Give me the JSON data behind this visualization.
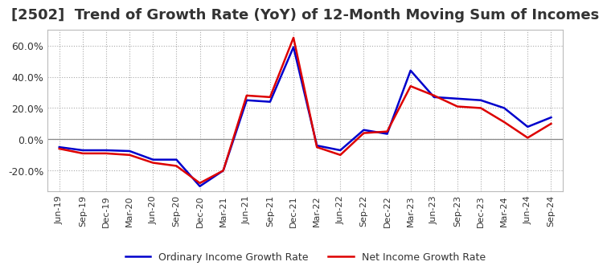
{
  "title": "[2502]  Trend of Growth Rate (YoY) of 12-Month Moving Sum of Incomes",
  "title_fontsize": 13,
  "background_color": "#ffffff",
  "plot_background_color": "#ffffff",
  "grid_color": "#aaaaaa",
  "ordinary_color": "#0000cc",
  "net_color": "#dd0000",
  "legend_labels": [
    "Ordinary Income Growth Rate",
    "Net Income Growth Rate"
  ],
  "dates": [
    "Jun-19",
    "Sep-19",
    "Dec-19",
    "Mar-20",
    "Jun-20",
    "Sep-20",
    "Dec-20",
    "Mar-21",
    "Jun-21",
    "Sep-21",
    "Dec-21",
    "Mar-22",
    "Jun-22",
    "Sep-22",
    "Dec-22",
    "Mar-23",
    "Jun-23",
    "Sep-23",
    "Dec-23",
    "Mar-24",
    "Jun-24",
    "Sep-24"
  ],
  "ordinary_income": [
    -5.0,
    -7.0,
    -7.0,
    -7.5,
    -13.0,
    -13.0,
    -30.0,
    -20.0,
    25.0,
    24.0,
    59.0,
    -4.0,
    -7.0,
    6.0,
    3.5,
    44.0,
    27.0,
    26.0,
    25.0,
    20.0,
    8.0,
    14.0
  ],
  "net_income": [
    -6.0,
    -9.0,
    -9.0,
    -10.0,
    -15.0,
    -17.0,
    -28.0,
    -20.0,
    28.0,
    27.0,
    65.0,
    -5.0,
    -10.0,
    4.0,
    5.0,
    34.0,
    28.0,
    21.0,
    20.0,
    11.0,
    1.0,
    10.0
  ],
  "ylim": [
    -33,
    70
  ],
  "yticks": [
    -20.0,
    0.0,
    20.0,
    40.0,
    60.0
  ],
  "line_width": 1.8
}
